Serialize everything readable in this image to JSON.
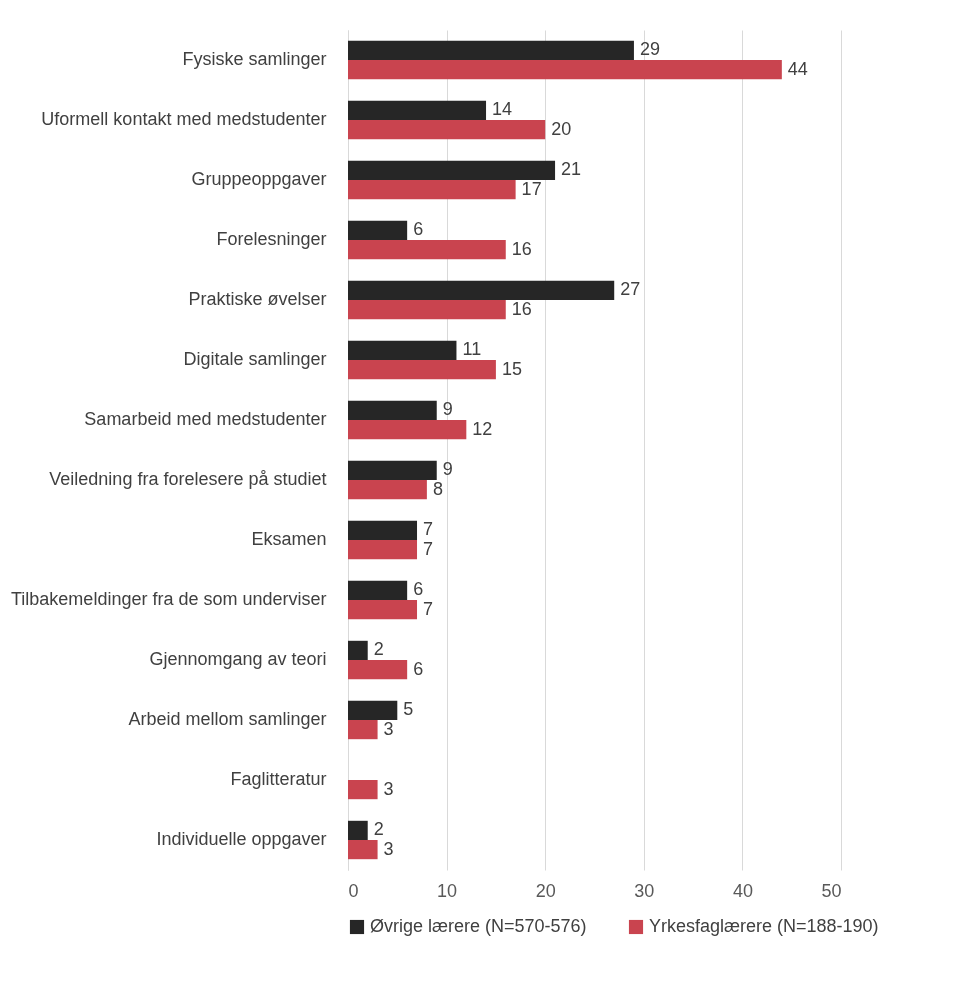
{
  "chart_data": {
    "type": "bar",
    "orientation": "horizontal",
    "categories": [
      "Fysiske samlinger",
      "Uformell kontakt med medstudenter",
      "Gruppeoppgaver",
      "Forelesninger",
      "Praktiske øvelser",
      "Digitale samlinger",
      "Samarbeid med medstudenter",
      "Veiledning fra forelesere på studiet",
      "Eksamen",
      "Tilbakemeldinger fra de som underviser",
      "Gjennomgang av teori",
      "Arbeid mellom samlinger",
      "Faglitteratur",
      "Individuelle oppgaver"
    ],
    "series": [
      {
        "name": "Øvrige lærere (N=570-576)",
        "color": "#262626",
        "values": [
          29,
          14,
          21,
          6,
          27,
          11,
          9,
          9,
          7,
          6,
          2,
          5,
          null,
          2
        ]
      },
      {
        "name": "Yrkesfaglærere (N=188-190)",
        "color": "#c9444f",
        "values": [
          44,
          20,
          17,
          16,
          16,
          15,
          12,
          8,
          7,
          7,
          6,
          3,
          3,
          3
        ]
      }
    ],
    "xlim": [
      0,
      50
    ],
    "xticks": [
      0,
      10,
      20,
      30,
      40,
      50
    ],
    "grid": "x",
    "legend": "bottom",
    "data_labels": true
  }
}
